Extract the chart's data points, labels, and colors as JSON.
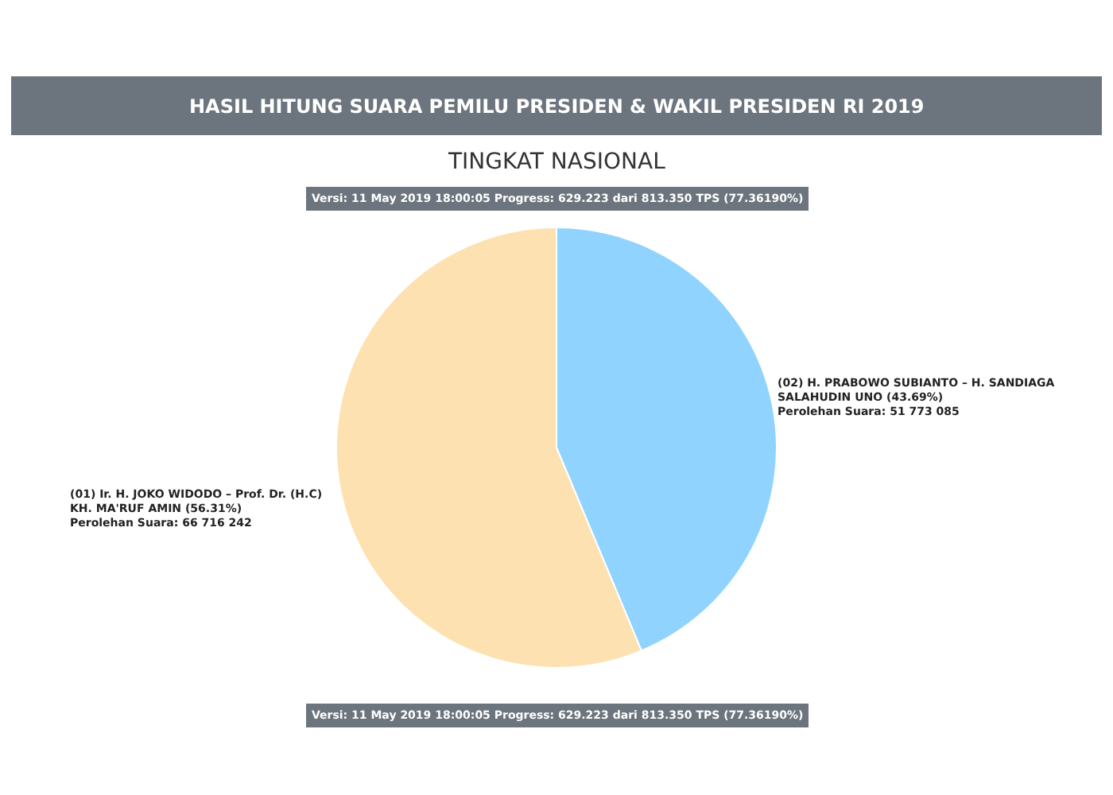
{
  "chart_data": {
    "type": "pie",
    "title": "HASIL HITUNG SUARA PEMILU PRESIDEN & WAKIL PRESIDEN RI 2019",
    "subtitle": "TINGKAT NASIONAL",
    "categories": [
      "(02) H. PRABOWO SUBIANTO – H. SANDIAGA SALAHUDIN UNO (43.69%)",
      "(01) Ir. H. JOKO WIDODO – Prof. Dr. (H.C) KH. MA'RUF AMIN (56.31%)"
    ],
    "values": [
      51773085,
      66716242
    ],
    "colors": [
      "#8fd3fe",
      "#fde1b0"
    ],
    "value_labels": [
      "Perolehan Suara: 51 773 085",
      "Perolehan Suara: 66 716 242"
    ],
    "annotations": [
      "Versi: 11 May 2019 18:00:05 Progress: 629.223 dari 813.350 TPS (77.36190%)",
      "Versi: 11 May 2019 18:00:05 Progress: 629.223 dari 813.350 TPS (77.36190%)"
    ],
    "legend": false
  }
}
